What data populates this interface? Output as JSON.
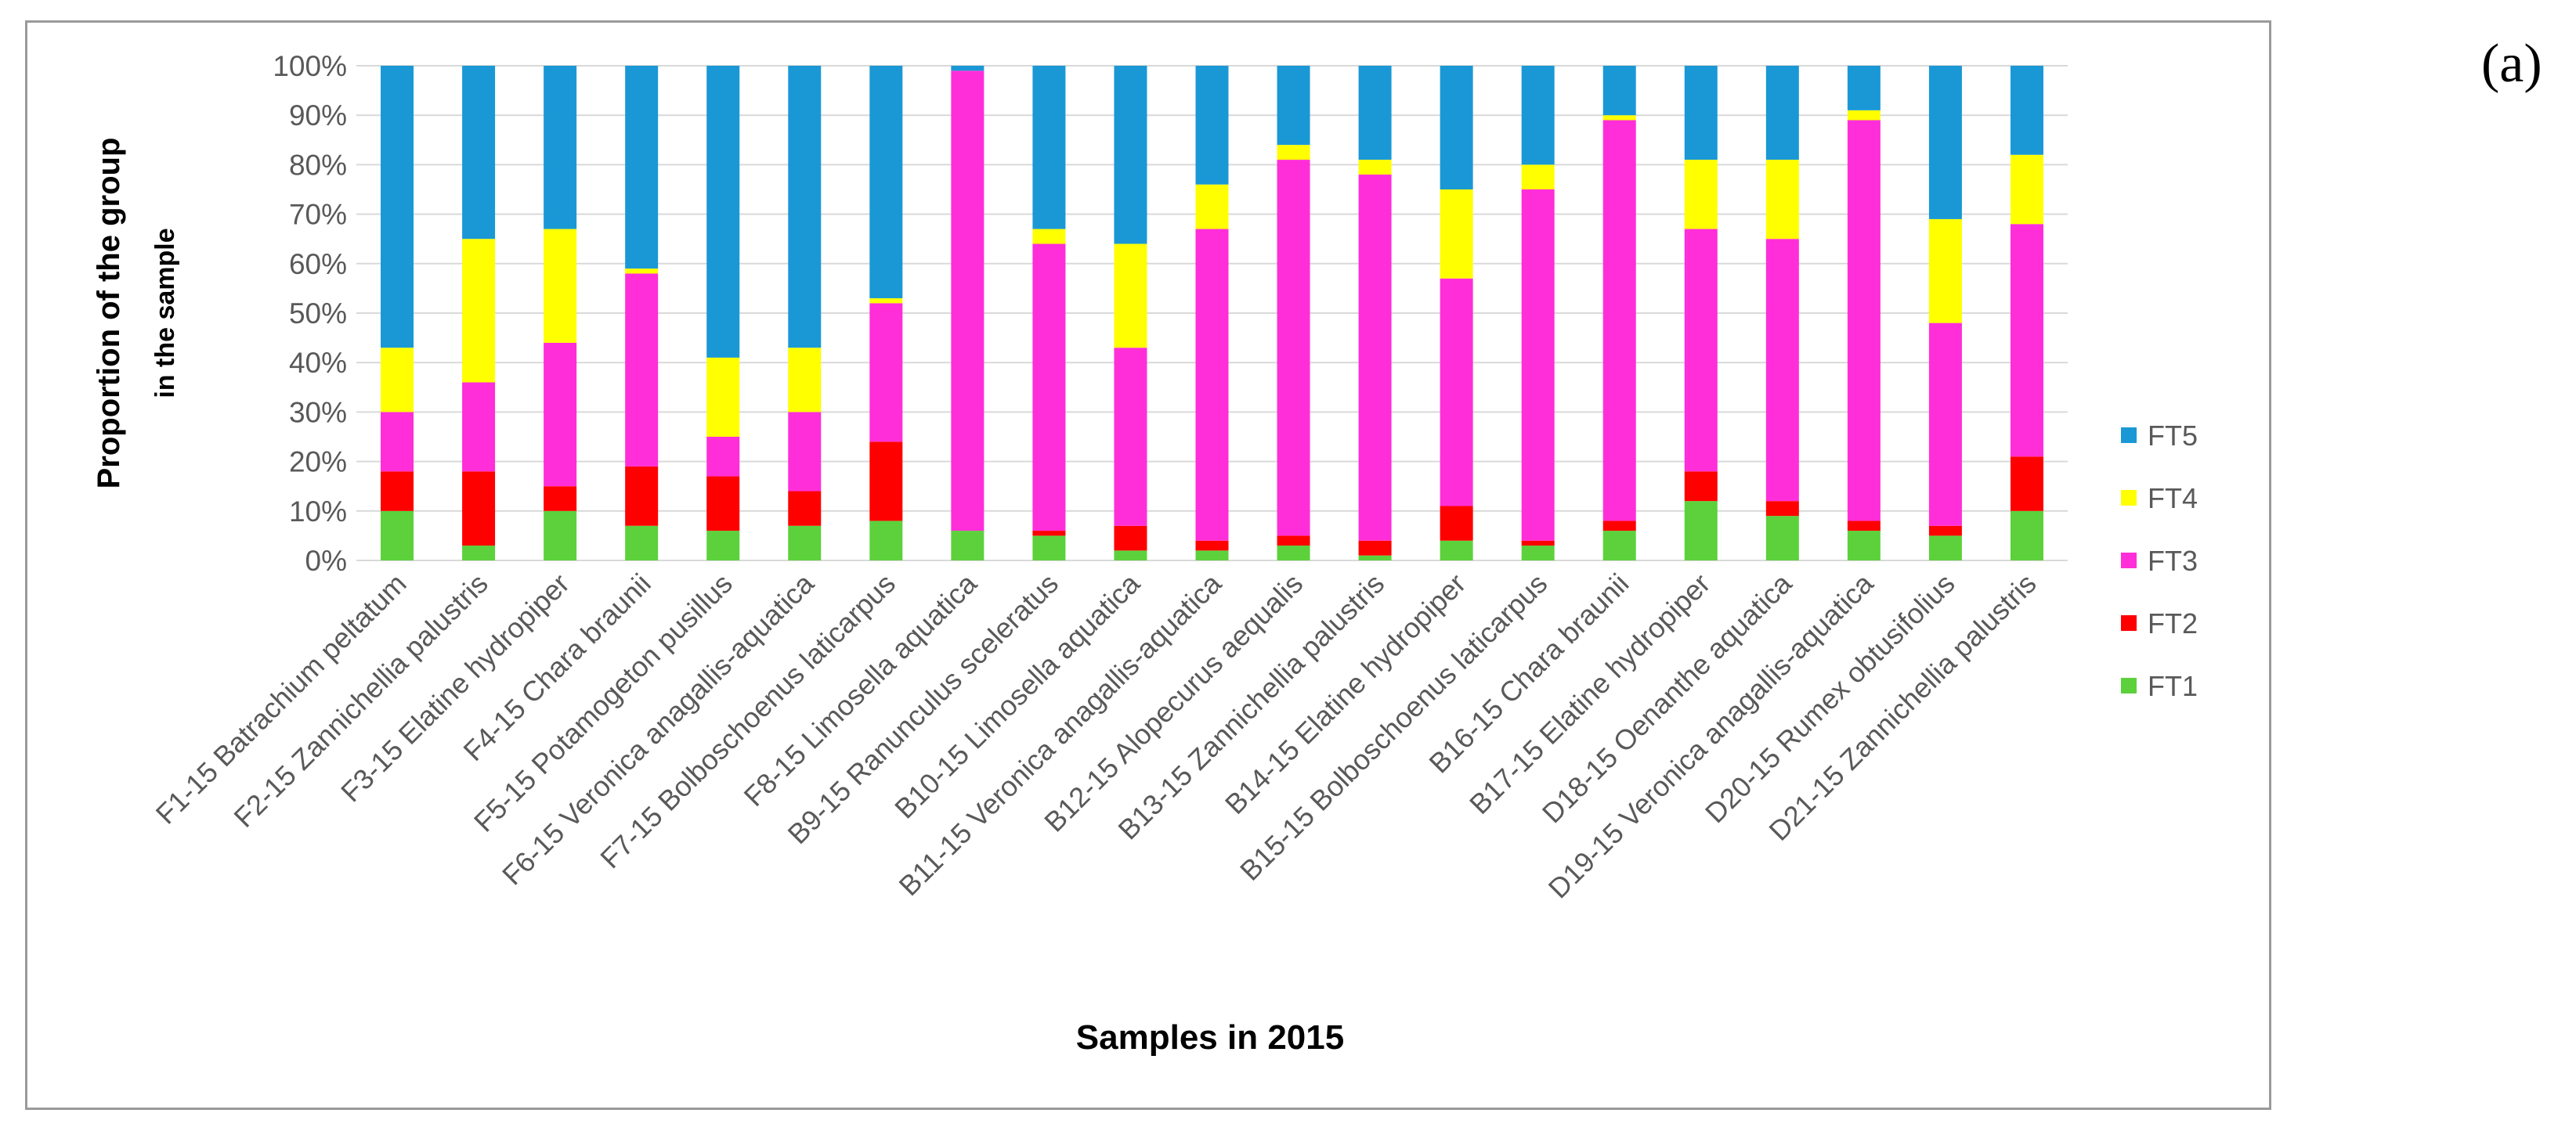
{
  "panel_label": "(a)",
  "chart_data": {
    "type": "bar",
    "stacked": true,
    "percent": true,
    "title": "",
    "xlabel": "Samples in 2015",
    "ylabel_line1": "Proportion of the group",
    "ylabel_line2": "in the sample",
    "ylim": [
      0,
      100
    ],
    "yticks": [
      "0%",
      "10%",
      "20%",
      "30%",
      "40%",
      "50%",
      "60%",
      "70%",
      "80%",
      "90%",
      "100%"
    ],
    "grid": true,
    "legend_position": "right",
    "categories": [
      "F1-15 Batrachium peltatum",
      "F2-15 Zannichellia palustris",
      "F3-15 Elatine hydropiper",
      "F4-15 Chara braunii",
      "F5-15 Potamogeton pusillus",
      "F6-15 Veronica anagallis-aquatica",
      "F7-15 Bolboschoenus laticarpus",
      "F8-15 Limosella aquatica",
      "B9-15 Ranunculus sceleratus",
      "B10-15 Limosella aquatica",
      "B11-15 Veronica anagallis-aquatica",
      "B12-15 Alopecurus aequalis",
      "B13-15 Zannichellia palustris",
      "B14-15 Elatine hydropiper",
      "B15-15 Bolboschoenus laticarpus",
      "B16-15 Chara braunii",
      "B17-15 Elatine hydropiper",
      "D18-15 Oenanthe aquatica",
      "D19-15 Veronica anagallis-aquatica",
      "D20-15 Rumex obtusifolius",
      "D21-15 Zannichellia palustris"
    ],
    "series": [
      {
        "name": "FT1",
        "color": "#5cd13c",
        "values": [
          10,
          3,
          10,
          7,
          6,
          7,
          8,
          6,
          5,
          2,
          2,
          3,
          1,
          4,
          3,
          6,
          12,
          9,
          6,
          5,
          10
        ]
      },
      {
        "name": "FT2",
        "color": "#ff0000",
        "values": [
          8,
          15,
          5,
          12,
          11,
          7,
          16,
          0,
          1,
          5,
          2,
          2,
          3,
          7,
          1,
          2,
          6,
          3,
          2,
          2,
          11
        ]
      },
      {
        "name": "FT3",
        "color": "#ff2ed8",
        "values": [
          12,
          18,
          29,
          39,
          8,
          16,
          28,
          93,
          58,
          36,
          63,
          76,
          74,
          46,
          71,
          81,
          49,
          53,
          81,
          41,
          47
        ]
      },
      {
        "name": "FT4",
        "color": "#ffff00",
        "values": [
          13,
          29,
          23,
          1,
          16,
          13,
          1,
          0,
          3,
          21,
          9,
          3,
          3,
          18,
          5,
          1,
          14,
          16,
          2,
          21,
          14
        ]
      },
      {
        "name": "FT5",
        "color": "#1a98d6",
        "values": [
          57,
          35,
          33,
          41,
          59,
          57,
          47,
          1,
          33,
          36,
          24,
          16,
          19,
          25,
          20,
          10,
          19,
          19,
          9,
          31,
          18
        ]
      }
    ],
    "legend_order": [
      "FT5",
      "FT4",
      "FT3",
      "FT2",
      "FT1"
    ]
  }
}
